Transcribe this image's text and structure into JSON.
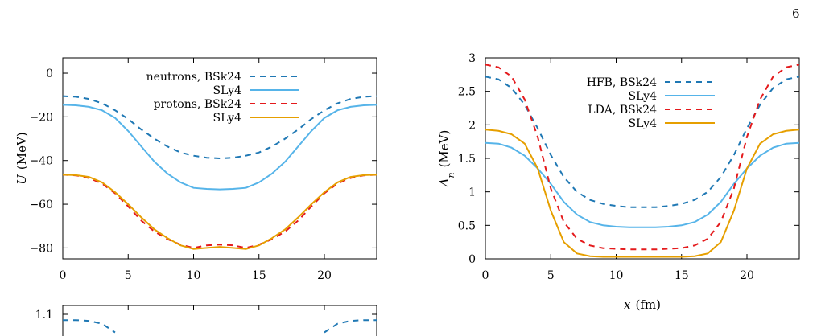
{
  "page_number": "6",
  "chart_data": [
    {
      "type": "line",
      "ylabel": "U",
      "ylabel_unit": "(MeV)",
      "xlim": [
        0,
        24
      ],
      "ylim": [
        -85,
        7
      ],
      "xticks": [
        0,
        5,
        10,
        15,
        20
      ],
      "xtick_labels": [
        "0",
        "5",
        "10",
        "15",
        "20"
      ],
      "yticks": [
        0,
        -20,
        -40,
        -60,
        -80
      ],
      "ytick_labels": [
        "0",
        "−20",
        "−40",
        "−60",
        "−80"
      ],
      "legend_position": "top-right",
      "series": [
        {
          "name": "neutrons, BSk24",
          "color": "#1f78b4",
          "style": "dashed",
          "x": [
            0,
            1,
            2,
            3,
            4,
            5,
            6,
            7,
            8,
            9,
            10,
            11,
            12,
            13,
            14,
            15,
            16,
            17,
            18,
            19,
            20,
            21,
            22,
            23,
            24
          ],
          "y": [
            -10.5,
            -10.8,
            -11.8,
            -13.8,
            -17,
            -21,
            -25.8,
            -30,
            -33.6,
            -36.3,
            -37.8,
            -38.7,
            -39,
            -38.7,
            -37.8,
            -36.3,
            -33.6,
            -30,
            -25.8,
            -21,
            -17,
            -13.8,
            -11.8,
            -10.8,
            -10.5
          ]
        },
        {
          "name": "SLy4",
          "color": "#56b4e9",
          "style": "solid",
          "x": [
            0,
            1,
            2,
            3,
            4,
            5,
            6,
            7,
            8,
            9,
            10,
            11,
            12,
            13,
            14,
            15,
            16,
            17,
            18,
            19,
            20,
            21,
            22,
            23,
            24
          ],
          "y": [
            -14.5,
            -14.7,
            -15.4,
            -17,
            -20.5,
            -26.5,
            -33.5,
            -40.5,
            -46,
            -50,
            -52.5,
            -53,
            -53.2,
            -53,
            -52.5,
            -50,
            -46,
            -40.5,
            -33.5,
            -26.5,
            -20.5,
            -17,
            -15.4,
            -14.7,
            -14.5
          ]
        },
        {
          "name": "protons, BSk24",
          "color": "#e41a1c",
          "style": "dashed",
          "x": [
            0,
            1,
            2,
            3,
            4,
            5,
            6,
            7,
            8,
            9,
            10,
            11,
            12,
            13,
            14,
            15,
            16,
            17,
            18,
            19,
            20,
            21,
            22,
            23,
            24
          ],
          "y": [
            -46.5,
            -46.8,
            -48,
            -50.5,
            -55,
            -61,
            -67.5,
            -72.5,
            -76,
            -78.5,
            -80,
            -78.8,
            -78.5,
            -78.8,
            -80,
            -78.5,
            -76,
            -72.5,
            -67.5,
            -61,
            -55,
            -50.5,
            -48,
            -46.8,
            -46.5
          ]
        },
        {
          "name": "SLy4",
          "color": "#e69f00",
          "style": "solid",
          "x": [
            0,
            1,
            2,
            3,
            4,
            5,
            6,
            7,
            8,
            9,
            10,
            11,
            12,
            13,
            14,
            15,
            16,
            17,
            18,
            19,
            20,
            21,
            22,
            23,
            24
          ],
          "y": [
            -46.5,
            -46.7,
            -47.5,
            -50,
            -54.5,
            -60,
            -66,
            -71.5,
            -75.5,
            -78.8,
            -80.5,
            -80,
            -79.5,
            -80,
            -80.5,
            -78.8,
            -75.5,
            -71.5,
            -66,
            -60,
            -54.5,
            -50,
            -47.5,
            -46.7,
            -46.5
          ]
        }
      ]
    },
    {
      "type": "line",
      "xlabel": "x",
      "xlabel_unit": "(fm)",
      "ylabel": "Δ",
      "ylabel_sub": "n",
      "ylabel_unit": "(MeV)",
      "xlim": [
        0,
        24
      ],
      "ylim": [
        0,
        3
      ],
      "xticks": [
        0,
        5,
        10,
        15,
        20
      ],
      "xtick_labels": [
        "0",
        "5",
        "10",
        "15",
        "20"
      ],
      "yticks": [
        0,
        0.5,
        1,
        1.5,
        2,
        2.5,
        3
      ],
      "ytick_labels": [
        "0",
        "0.5",
        "1",
        "1.5",
        "2",
        "2.5",
        "3"
      ],
      "legend_position": "top-right",
      "series": [
        {
          "name": "HFB, BSk24",
          "color": "#1f78b4",
          "style": "dashed",
          "x": [
            0,
            1,
            2,
            3,
            4,
            5,
            6,
            7,
            8,
            9,
            10,
            11,
            12,
            13,
            14,
            15,
            16,
            17,
            18,
            19,
            20,
            21,
            22,
            23,
            24
          ],
          "y": [
            2.72,
            2.68,
            2.55,
            2.3,
            1.95,
            1.55,
            1.22,
            1.0,
            0.88,
            0.82,
            0.79,
            0.77,
            0.77,
            0.77,
            0.79,
            0.82,
            0.88,
            1.0,
            1.22,
            1.55,
            1.95,
            2.3,
            2.55,
            2.68,
            2.72
          ]
        },
        {
          "name": "SLy4",
          "color": "#56b4e9",
          "style": "solid",
          "x": [
            0,
            1,
            2,
            3,
            4,
            5,
            6,
            7,
            8,
            9,
            10,
            11,
            12,
            13,
            14,
            15,
            16,
            17,
            18,
            19,
            20,
            21,
            22,
            23,
            24
          ],
          "y": [
            1.73,
            1.72,
            1.66,
            1.54,
            1.35,
            1.12,
            0.85,
            0.66,
            0.55,
            0.5,
            0.48,
            0.47,
            0.47,
            0.47,
            0.48,
            0.5,
            0.55,
            0.66,
            0.85,
            1.12,
            1.35,
            1.54,
            1.66,
            1.72,
            1.73
          ]
        },
        {
          "name": "LDA, BSk24",
          "color": "#e41a1c",
          "style": "dashed",
          "x": [
            0,
            1,
            2,
            3,
            4,
            5,
            6,
            7,
            8,
            9,
            10,
            11,
            12,
            13,
            14,
            15,
            16,
            17,
            18,
            19,
            20,
            21,
            22,
            23,
            24
          ],
          "y": [
            2.9,
            2.86,
            2.72,
            2.38,
            1.82,
            1.05,
            0.55,
            0.3,
            0.2,
            0.16,
            0.15,
            0.14,
            0.14,
            0.14,
            0.15,
            0.16,
            0.2,
            0.3,
            0.55,
            1.05,
            1.82,
            2.38,
            2.72,
            2.86,
            2.9
          ]
        },
        {
          "name": "SLy4",
          "color": "#e69f00",
          "style": "solid",
          "x": [
            0,
            1,
            2,
            3,
            4,
            5,
            6,
            7,
            8,
            9,
            10,
            11,
            12,
            13,
            14,
            15,
            16,
            17,
            18,
            19,
            20,
            21,
            22,
            23,
            24
          ],
          "y": [
            1.93,
            1.91,
            1.86,
            1.72,
            1.35,
            0.72,
            0.25,
            0.08,
            0.04,
            0.03,
            0.03,
            0.03,
            0.03,
            0.03,
            0.03,
            0.03,
            0.04,
            0.08,
            0.25,
            0.72,
            1.35,
            1.72,
            1.86,
            1.91,
            1.93
          ]
        }
      ]
    },
    {
      "type": "line",
      "ylim_visible": [
        1.05,
        1.12
      ],
      "yticks": [
        1.1
      ],
      "ytick_labels": [
        "1.1"
      ],
      "series": [
        {
          "color": "#1f78b4",
          "style": "dashed",
          "x": [
            0,
            1,
            2,
            3,
            4,
            20,
            21,
            22,
            23,
            24
          ],
          "y": [
            1.092,
            1.092,
            1.091,
            1.087,
            1.075,
            1.075,
            1.087,
            1.091,
            1.092,
            1.092
          ]
        }
      ]
    }
  ]
}
